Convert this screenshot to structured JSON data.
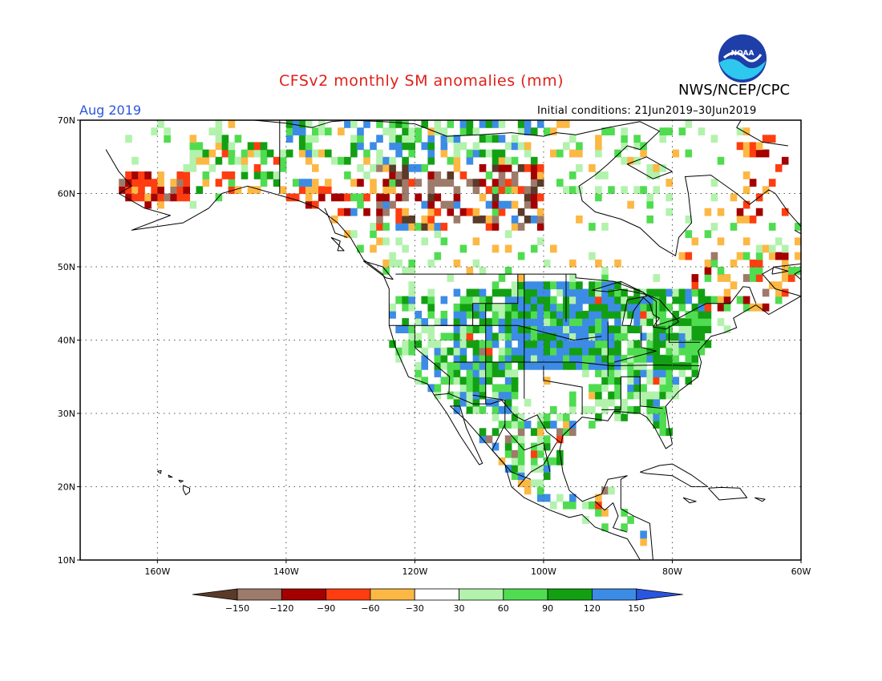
{
  "header": {
    "title": "CFSv2 monthly SM anomalies (mm)",
    "agency": "NWS/NCEP/CPC",
    "logo_text": "NOAA",
    "month": "Aug 2019",
    "initial_conditions": "Initial conditions: 21Jun2019–30Jun2019"
  },
  "map": {
    "lon_range": [
      -172,
      -60
    ],
    "lat_range": [
      10,
      70
    ],
    "lat_ticks": [
      "70N",
      "60N",
      "50N",
      "40N",
      "30N",
      "20N",
      "10N"
    ],
    "lon_ticks": [
      "160W",
      "140W",
      "120W",
      "100W",
      "80W",
      "60W"
    ],
    "grid": "dotted"
  },
  "legend": {
    "tick_labels": [
      "-150",
      "-120",
      "-90",
      "-60",
      "-30",
      "30",
      "60",
      "90",
      "120",
      "150"
    ],
    "colors": [
      "#5a3a28",
      "#9e7a6a",
      "#a40000",
      "#ff3d10",
      "#fcb844",
      "#ffffff",
      "#b2f2ad",
      "#50dc50",
      "#12a012",
      "#3c8ce6",
      "#2a55e0"
    ]
  },
  "chart_data": {
    "type": "heatmap",
    "title": "CFSv2 monthly SM anomalies (mm)",
    "subtitle": "Aug 2019",
    "xlabel": "",
    "ylabel": "",
    "xlim": [
      -172,
      -60
    ],
    "ylim": [
      10,
      70
    ],
    "color_scale_bounds": [
      -150,
      -120,
      -90,
      -60,
      -30,
      30,
      60,
      90,
      120,
      150
    ],
    "regions": [
      {
        "area": "central US Plains/Midwest",
        "anomaly_class": "90 to 150+"
      },
      {
        "area": "Great Lakes / Ohio Valley",
        "anomaly_class": "60 to 120"
      },
      {
        "area": "southeast US",
        "anomaly_class": "30 to 120"
      },
      {
        "area": "southwest US / northern Mexico",
        "anomaly_class": "60 to 150"
      },
      {
        "area": "western Canada",
        "anomaly_class": "-150 to -60"
      },
      {
        "area": "southwest Alaska",
        "anomaly_class": "-120 to -60"
      },
      {
        "area": "northern Canada",
        "anomaly_class": "30 to 150"
      },
      {
        "area": "Caribbean / Central America",
        "anomaly_class": "mixed"
      }
    ]
  }
}
